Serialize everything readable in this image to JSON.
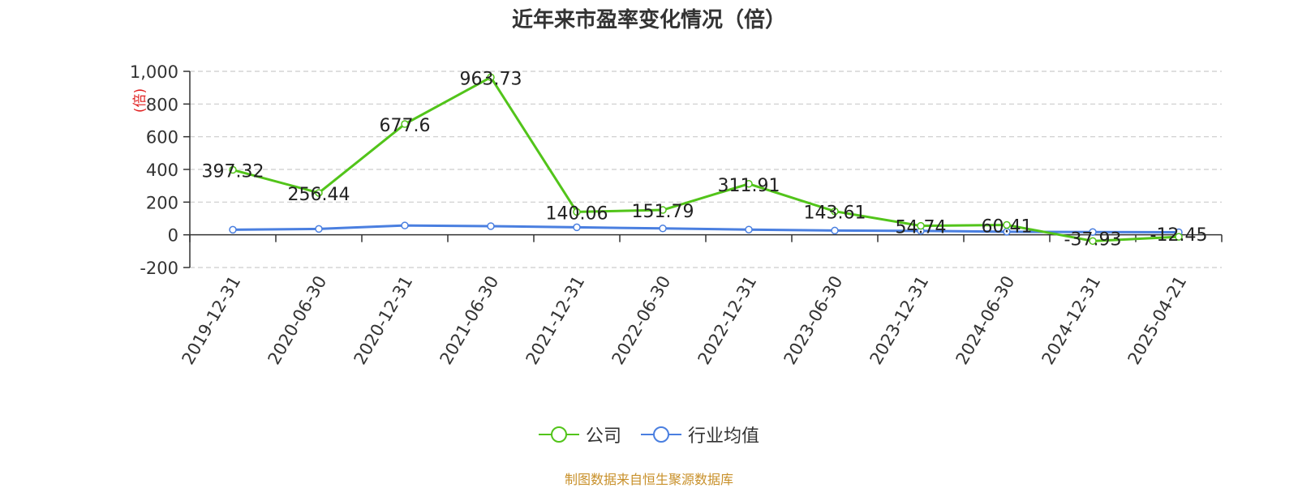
{
  "colors": {
    "company": "#52c41a",
    "industry": "#4a7fe0",
    "source": "#c8902a",
    "unit": "#e02020"
  },
  "chart_data": {
    "type": "line",
    "title": "近年来市盈率变化情况（倍）",
    "ylabel": "(倍)",
    "xlabel": "",
    "categories": [
      "2019-12-31",
      "2020-06-30",
      "2020-12-31",
      "2021-06-30",
      "2021-12-31",
      "2022-06-30",
      "2022-12-31",
      "2023-06-30",
      "2023-12-31",
      "2024-06-30",
      "2024-12-31",
      "2025-04-21"
    ],
    "ylim": [
      -200,
      1000
    ],
    "yticks": [
      "-200",
      "0",
      "200",
      "400",
      "600",
      "800",
      "1,000"
    ],
    "grid": true,
    "legend_position": "bottom",
    "series": [
      {
        "name": "公司",
        "color_key": "company",
        "values": [
          397.32,
          256.44,
          677.6,
          963.73,
          140.06,
          151.79,
          311.91,
          143.61,
          54.74,
          60.41,
          -37.93,
          -12.45
        ],
        "labels": [
          "397.32",
          "256.44",
          "677.6",
          "963.73",
          "140.06",
          "151.79",
          "311.91",
          "143.61",
          "54.74",
          "60.41",
          "-37.93",
          "-12.45"
        ]
      },
      {
        "name": "行业均值",
        "color_key": "industry",
        "values": [
          31,
          36,
          57,
          53,
          46,
          39,
          32,
          26,
          24,
          19,
          17,
          16
        ]
      }
    ]
  },
  "footer": {
    "source": "制图数据来自恒生聚源数据库"
  }
}
